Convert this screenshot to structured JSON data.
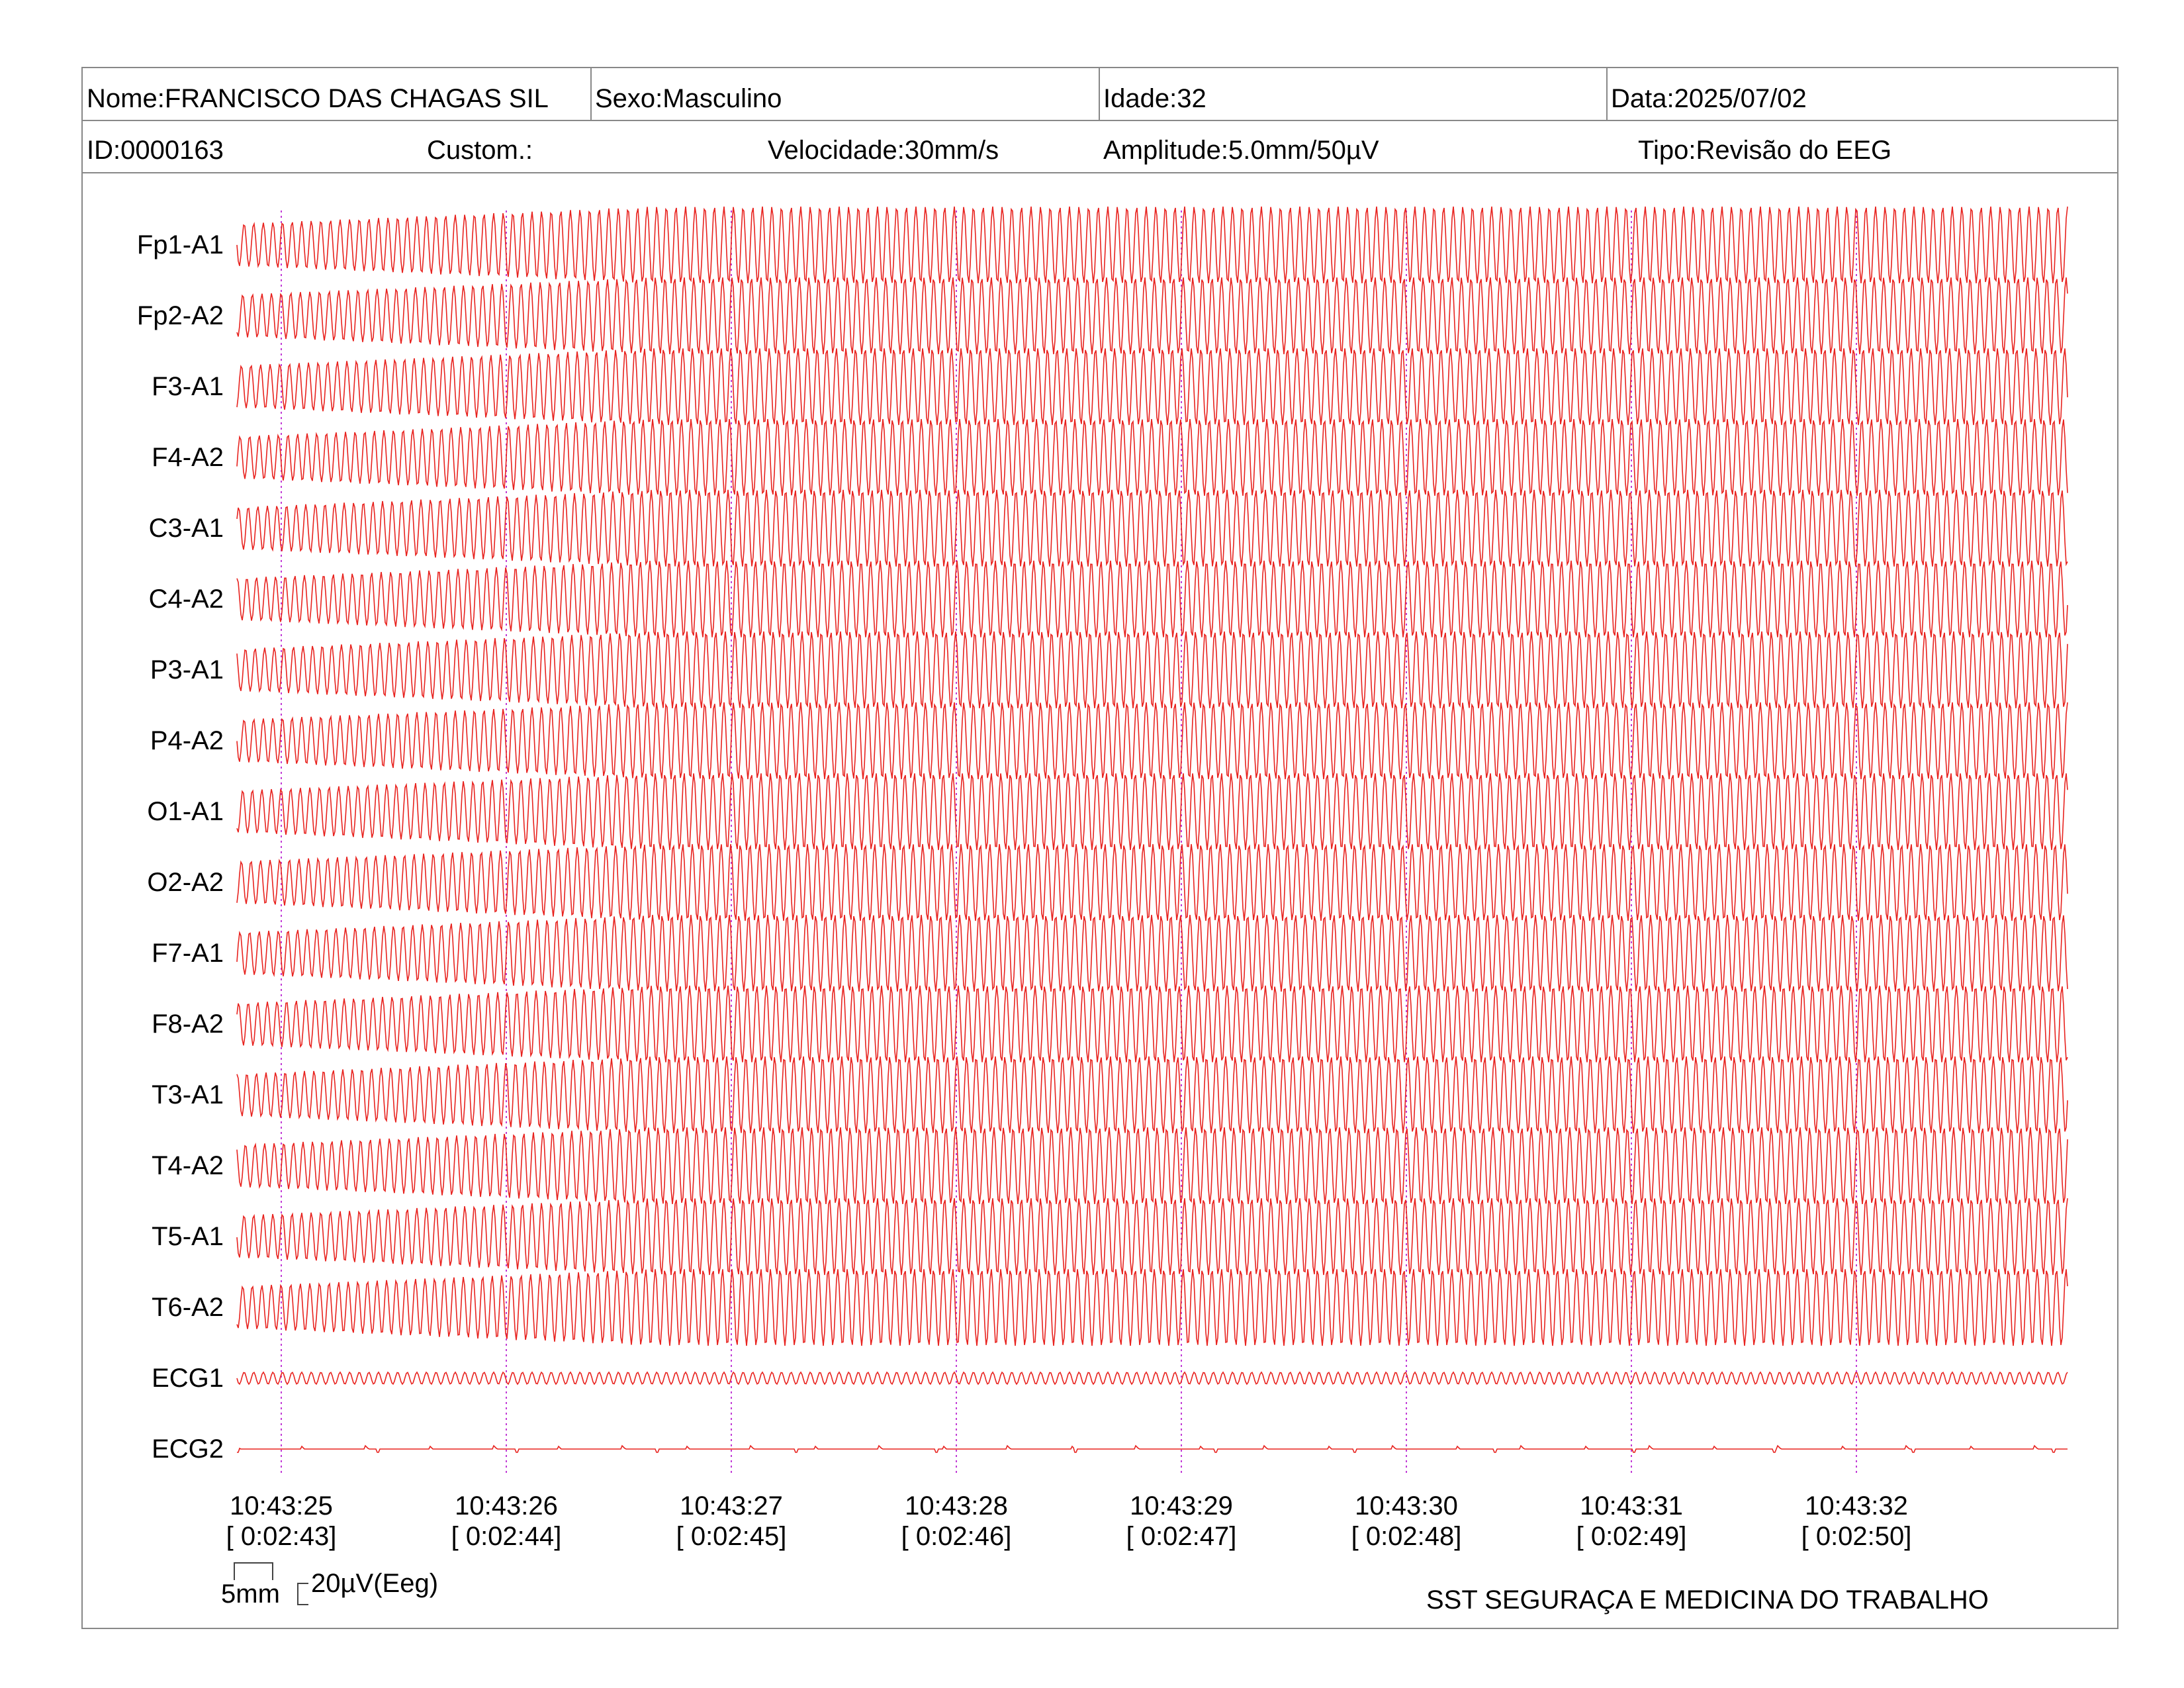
{
  "header": {
    "nome": "Nome:FRANCISCO DAS CHAGAS SIL",
    "sexo": "Sexo:Masculino",
    "idade": "Idade:32",
    "data": "Data:2025/07/02",
    "id": "ID:0000163",
    "custom": "Custom.:",
    "velocidade": "Velocidade:30mm/s",
    "amplitude": "Amplitude:5.0mm/50µV",
    "tipo": "Tipo:Revisão do EEG"
  },
  "channels": [
    {
      "label": "Fp1-A1",
      "kind": "eeg"
    },
    {
      "label": "Fp2-A2",
      "kind": "eeg"
    },
    {
      "label": "F3-A1",
      "kind": "eeg"
    },
    {
      "label": "F4-A2",
      "kind": "eeg"
    },
    {
      "label": "C3-A1",
      "kind": "eeg"
    },
    {
      "label": "C4-A2",
      "kind": "eeg"
    },
    {
      "label": "P3-A1",
      "kind": "eeg"
    },
    {
      "label": "P4-A2",
      "kind": "eeg"
    },
    {
      "label": "O1-A1",
      "kind": "eeg"
    },
    {
      "label": "O2-A2",
      "kind": "eeg"
    },
    {
      "label": "F7-A1",
      "kind": "eeg"
    },
    {
      "label": "F8-A2",
      "kind": "eeg"
    },
    {
      "label": "T3-A1",
      "kind": "eeg"
    },
    {
      "label": "T4-A2",
      "kind": "eeg"
    },
    {
      "label": "T5-A1",
      "kind": "eeg"
    },
    {
      "label": "T6-A2",
      "kind": "eeg"
    },
    {
      "label": "ECG1",
      "kind": "ecg-small"
    },
    {
      "label": "ECG2",
      "kind": "ecg-flat"
    }
  ],
  "time_marks": [
    {
      "time": "10:43:25",
      "elapsed": "[ 0:02:43]"
    },
    {
      "time": "10:43:26",
      "elapsed": "[ 0:02:44]"
    },
    {
      "time": "10:43:27",
      "elapsed": "[ 0:02:45]"
    },
    {
      "time": "10:43:28",
      "elapsed": "[ 0:02:46]"
    },
    {
      "time": "10:43:29",
      "elapsed": "[ 0:02:47]"
    },
    {
      "time": "10:43:30",
      "elapsed": "[ 0:02:48]"
    },
    {
      "time": "10:43:31",
      "elapsed": "[ 0:02:49]"
    },
    {
      "time": "10:43:32",
      "elapsed": "[ 0:02:50]"
    }
  ],
  "scale": {
    "time_label": "5mm",
    "amp_label": "20µV(Eeg)"
  },
  "footer": {
    "brand": "SST SEGURAÇA E MEDICINA DO TRABALHO"
  },
  "colors": {
    "trace": "#e8231f",
    "marker": "#c23bd6",
    "frame": "#888888"
  }
}
